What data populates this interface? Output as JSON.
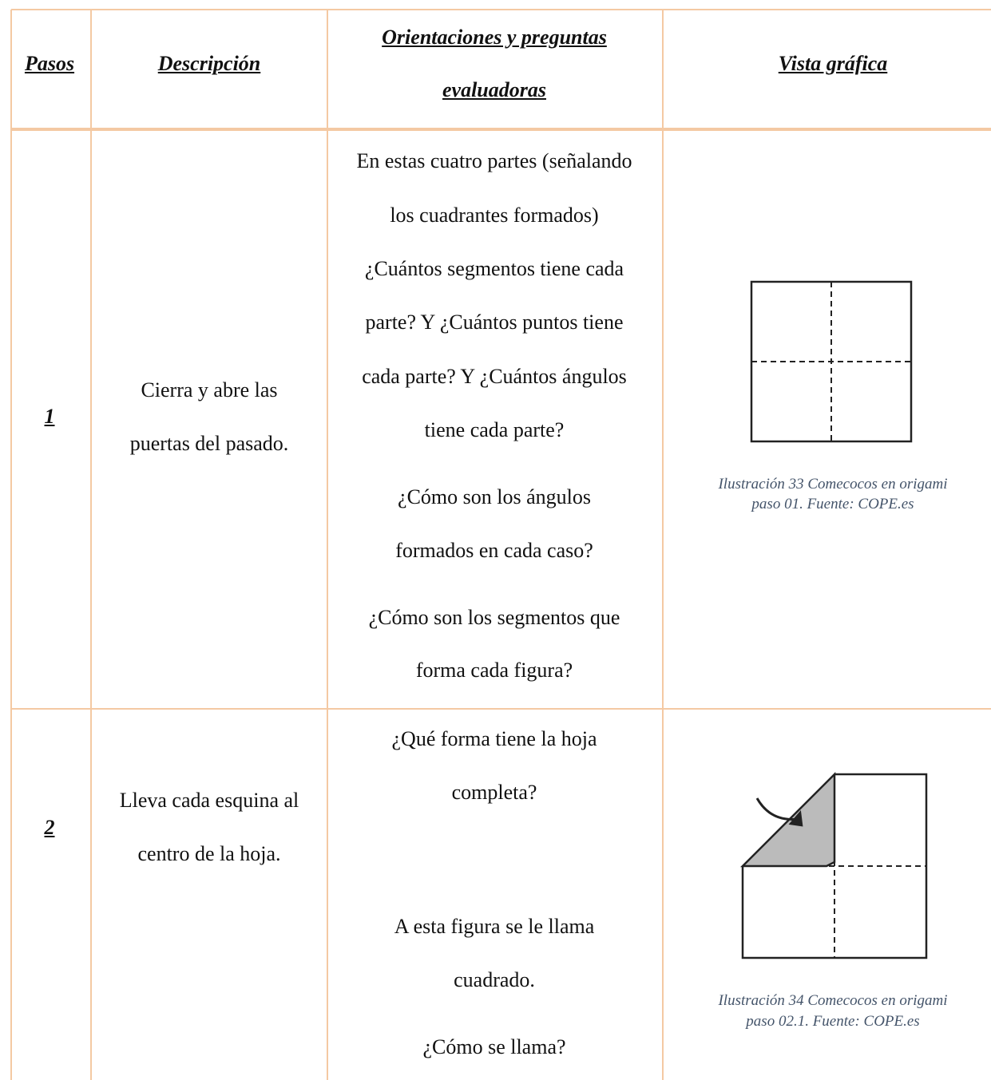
{
  "header": [
    "Pasos",
    "Descripción",
    [
      "Orientaciones y preguntas",
      "evaluadoras"
    ],
    "Vista gráfica"
  ],
  "rows": [
    {
      "step": "1",
      "description": [
        "Cierra y abre las",
        "puertas del pasado."
      ],
      "questions": [
        [
          "En estas cuatro partes (señalando",
          "los cuadrantes formados)",
          "¿Cuántos segmentos tiene cada",
          "parte? Y ¿Cuántos puntos tiene",
          "cada parte? Y ¿Cuántos ángulos",
          "tiene cada parte?"
        ],
        [
          "¿Cómo son los ángulos",
          "formados en cada caso?"
        ],
        [
          "¿Cómo son los segmentos que",
          "forma cada figura?"
        ]
      ],
      "caption": [
        "Ilustración 33 Comecocos en origami",
        "paso 01. Fuente: COPE.es"
      ]
    },
    {
      "step": "2",
      "description": [
        "Lleva cada esquina al",
        "centro de la hoja."
      ],
      "questions": [
        [
          "¿Qué forma tiene la hoja",
          "completa?"
        ],
        [
          "A esta figura se le llama",
          "cuadrado."
        ],
        [
          "¿Cómo se llama?"
        ]
      ],
      "caption": [
        "Ilustración 34 Comecocos en origami",
        "paso 02.1. Fuente: COPE.es"
      ]
    }
  ]
}
